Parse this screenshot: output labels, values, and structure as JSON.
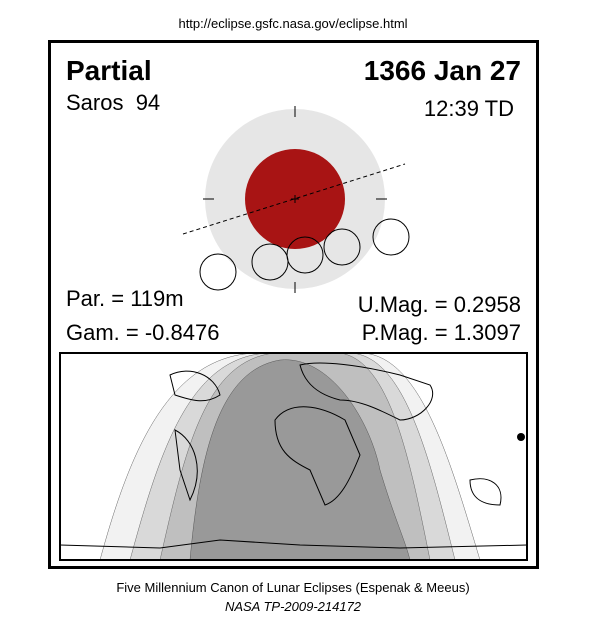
{
  "header": {
    "url": "http://eclipse.gsfc.nasa.gov/eclipse.html"
  },
  "eclipse": {
    "type": "Partial",
    "saros": "Saros  94",
    "date": "1366 Jan 27",
    "time": "12:39 TD",
    "par": "Par. = 119m",
    "gam": "Gam. = -0.8476",
    "umag": "U.Mag. = 0.2958",
    "pmag": "P.Mag. = 1.3097"
  },
  "footer": {
    "line1": "Five Millennium Canon of Lunar Eclipses (Espenak & Meeus)",
    "line2": "NASA TP-2009-214172"
  }
}
